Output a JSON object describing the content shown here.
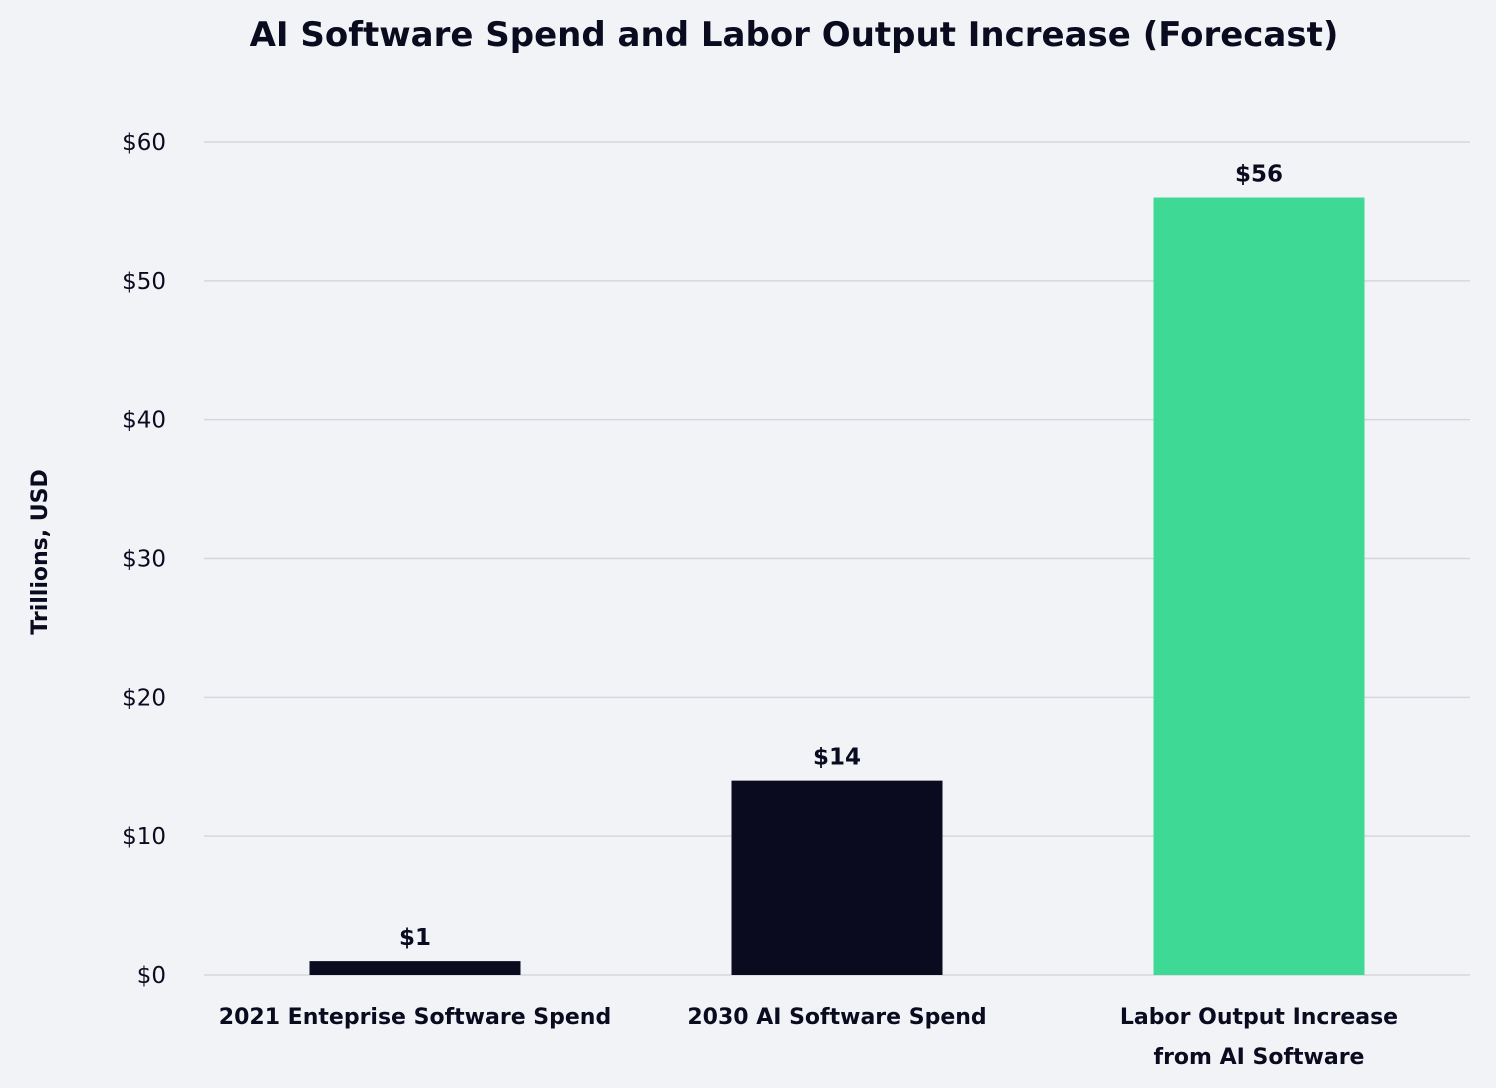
{
  "chart_data": {
    "type": "bar",
    "title": "AI Software Spend and Labor Output Increase (Forecast)",
    "ylabel": "Trillions, USD",
    "xlabel": "",
    "ylim": [
      0,
      60
    ],
    "yticks": [
      0,
      10,
      20,
      30,
      40,
      50,
      60
    ],
    "ytick_labels": [
      "$0",
      "$10",
      "$20",
      "$30",
      "$40",
      "$50",
      "$60"
    ],
    "grid": true,
    "categories": [
      [
        "2021 Enteprise Software Spend"
      ],
      [
        "2030 AI Software Spend"
      ],
      [
        "Labor Output Increase",
        "from AI Software"
      ]
    ],
    "values": [
      1,
      14,
      56
    ],
    "value_labels": [
      "$1",
      "$14",
      "$56"
    ],
    "colors": [
      "#0b0b20",
      "#0b0b20",
      "#3dd995"
    ]
  }
}
